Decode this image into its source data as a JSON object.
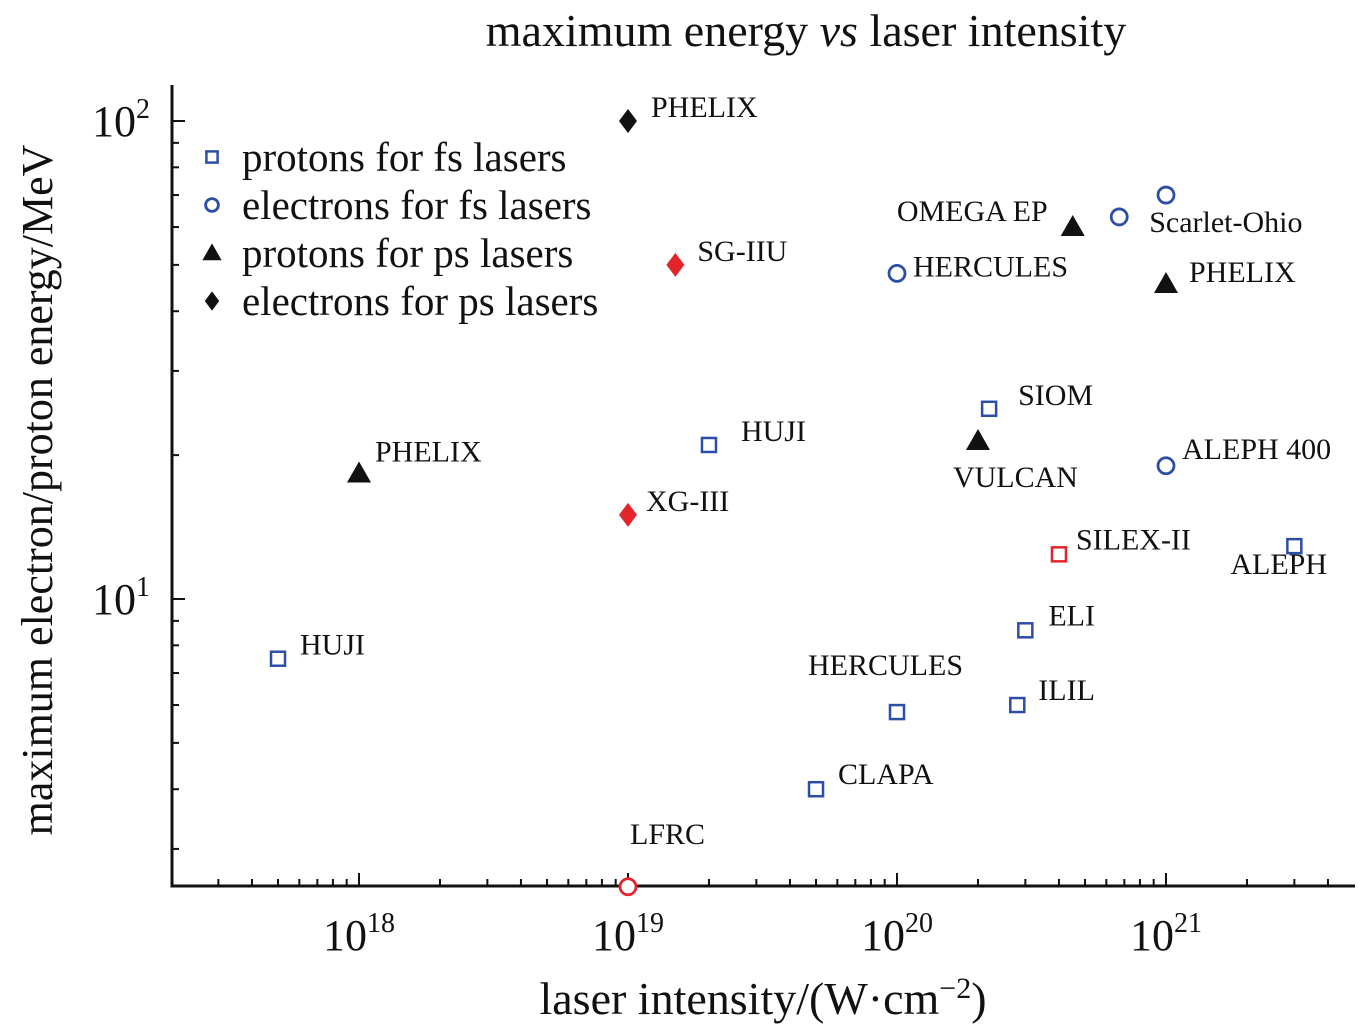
{
  "chart_data": {
    "type": "scatter",
    "title_parts": [
      "maximum energy ",
      "vs",
      " laser intensity"
    ],
    "xlabel": "laser intensity/(W·cm",
    "xlabel_exp": "−2",
    "xlabel_close": ")",
    "ylabel": "maximum electron/proton energy/MeV",
    "xscale": "log",
    "yscale": "log",
    "xlim": [
      2e+17,
      5.1e+21
    ],
    "ylim": [
      2.5,
      119
    ],
    "x_ticks": [
      {
        "base": "10",
        "exp": "18",
        "value": 1e+18
      },
      {
        "base": "10",
        "exp": "19",
        "value": 1e+19
      },
      {
        "base": "10",
        "exp": "20",
        "value": 1e+20
      },
      {
        "base": "10",
        "exp": "21",
        "value": 1e+21
      }
    ],
    "y_ticks": [
      {
        "base": "10",
        "exp": "1",
        "value": 10
      },
      {
        "base": "10",
        "exp": "2",
        "value": 100
      }
    ],
    "grid": false,
    "legend_position": "top-left",
    "colors": {
      "blue": "#2d4ea6",
      "black": "#111111",
      "red": "#e3242b"
    },
    "series": [
      {
        "name": "protons for fs lasers",
        "marker": "square",
        "points": [
          {
            "x": 5e+17,
            "y": 7.5,
            "label": "HUJI",
            "color": "#2d4ea6"
          },
          {
            "x": 2e+19,
            "y": 21,
            "label": "HUJI",
            "color": "#2d4ea6"
          },
          {
            "x": 5e+19,
            "y": 4.0,
            "label": "CLAPA",
            "color": "#2d4ea6"
          },
          {
            "x": 1e+20,
            "y": 5.8,
            "label": "HERCULES",
            "color": "#2d4ea6"
          },
          {
            "x": 2.2e+20,
            "y": 25,
            "label": "SIOM",
            "color": "#2d4ea6"
          },
          {
            "x": 4e+20,
            "y": 12.4,
            "label": "SILEX-II",
            "color": "#e3242b"
          },
          {
            "x": 3e+20,
            "y": 8.6,
            "label": "ELI",
            "color": "#2d4ea6"
          },
          {
            "x": 2.8e+20,
            "y": 6.0,
            "label": "ILIL",
            "color": "#2d4ea6"
          },
          {
            "x": 3e+21,
            "y": 12.9,
            "label": "ALEPH",
            "color": "#2d4ea6"
          }
        ]
      },
      {
        "name": "electrons for fs lasers",
        "marker": "circle",
        "points": [
          {
            "x": 1e+19,
            "y": 2.5,
            "label": "LFRC",
            "color": "#e3242b"
          },
          {
            "x": 1e+20,
            "y": 48,
            "label": "HERCULES",
            "color": "#2d4ea6"
          },
          {
            "x": 6.7e+20,
            "y": 63,
            "label": "Scarlet-Ohio",
            "color": "#2d4ea6"
          },
          {
            "x": 1e+21,
            "y": 70,
            "label": "",
            "color": "#2d4ea6"
          },
          {
            "x": 1e+21,
            "y": 19,
            "label": "ALEPH 400",
            "color": "#2d4ea6"
          }
        ]
      },
      {
        "name": "protons for ps lasers",
        "marker": "triangle",
        "points": [
          {
            "x": 1e+18,
            "y": 18.3,
            "label": "PHELIX",
            "color": "#111111"
          },
          {
            "x": 2e+20,
            "y": 21.4,
            "label": "VULCAN",
            "color": "#111111"
          },
          {
            "x": 4.5e+20,
            "y": 60,
            "label": "OMEGA EP",
            "color": "#111111"
          },
          {
            "x": 1e+21,
            "y": 45.6,
            "label": "PHELIX",
            "color": "#111111"
          }
        ]
      },
      {
        "name": "electrons for ps lasers",
        "marker": "diamond",
        "points": [
          {
            "x": 1e+19,
            "y": 100,
            "label": "PHELIX",
            "color": "#111111"
          },
          {
            "x": 1.5e+19,
            "y": 50,
            "label": "SG-IIU",
            "color": "#e3242b"
          },
          {
            "x": 1e+19,
            "y": 15,
            "label": "XG-III",
            "color": "#e3242b"
          }
        ]
      }
    ]
  }
}
